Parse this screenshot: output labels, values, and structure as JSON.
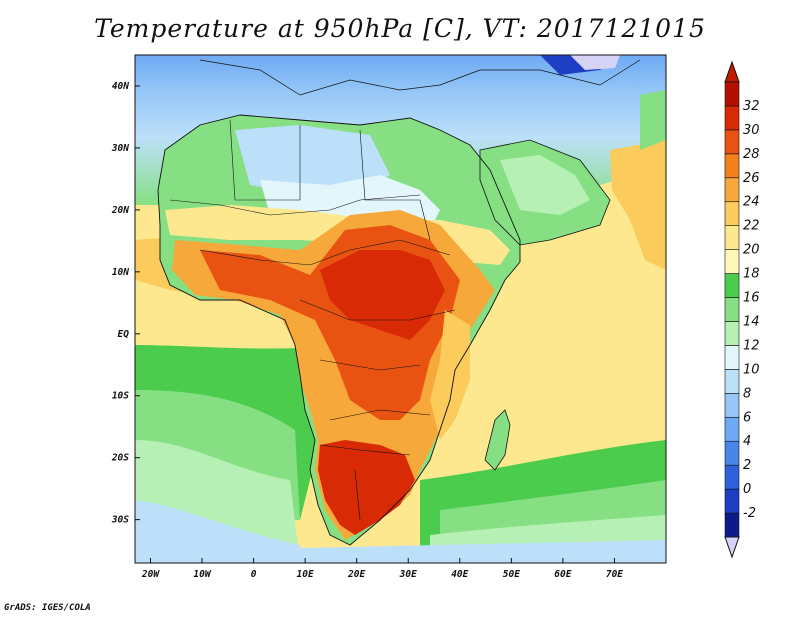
{
  "title": "Temperature at 950hPa [C], VT: 2017121015",
  "credit": "GrADS: IGES/COLA",
  "map": {
    "lon_range": [
      -23,
      80
    ],
    "lat_range": [
      -37,
      45
    ],
    "lat_ticks": [
      {
        "lat": 40,
        "label": "40N"
      },
      {
        "lat": 30,
        "label": "30N"
      },
      {
        "lat": 20,
        "label": "20N"
      },
      {
        "lat": 10,
        "label": "10N"
      },
      {
        "lat": 0,
        "label": "EQ"
      },
      {
        "lat": -10,
        "label": "10S"
      },
      {
        "lat": -20,
        "label": "20S"
      },
      {
        "lat": -30,
        "label": "30S"
      }
    ],
    "lon_ticks": [
      {
        "lon": -20,
        "label": "20W"
      },
      {
        "lon": -10,
        "label": "10W"
      },
      {
        "lon": 0,
        "label": "0"
      },
      {
        "lon": 10,
        "label": "10E"
      },
      {
        "lon": 20,
        "label": "20E"
      },
      {
        "lon": 30,
        "label": "30E"
      },
      {
        "lon": 40,
        "label": "40E"
      },
      {
        "lon": 50,
        "label": "50E"
      },
      {
        "lon": 60,
        "label": "60E"
      },
      {
        "lon": 70,
        "label": "70E"
      }
    ]
  },
  "colorbar": {
    "unit": "C",
    "levels": [
      "-2",
      "0",
      "2",
      "4",
      "6",
      "8",
      "10",
      "12",
      "14",
      "16",
      "18",
      "20",
      "22",
      "24",
      "26",
      "28",
      "30",
      "32"
    ],
    "colors": [
      "#0c1a8c",
      "#1e3fc4",
      "#2e62dc",
      "#4a86ea",
      "#6ea9f3",
      "#96c7f7",
      "#bde0fa",
      "#e3f6fb",
      "#b7f0b5",
      "#86e083",
      "#4ccc4c",
      "#fdf8b9",
      "#fde890",
      "#fbcb5c",
      "#f7a83a",
      "#f4801c",
      "#e95311",
      "#d82a05",
      "#b50f00"
    ],
    "under_color": "#d7d3f7",
    "over_color": "#c41a00"
  }
}
